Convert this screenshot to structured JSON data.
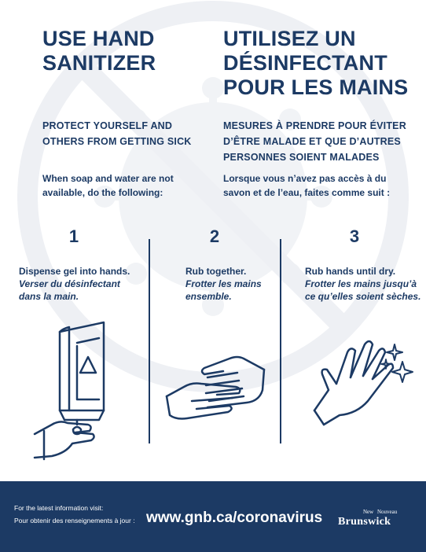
{
  "heading": {
    "en_title_line1": "USE HAND",
    "en_title_line2": "SANITIZER",
    "fr_title_line1": "UTILISEZ UN",
    "fr_title_line2": "DÉSINFECTANT",
    "fr_title_line3": "POUR LES MAINS"
  },
  "subheading": {
    "en_line1": "PROTECT YOURSELF AND",
    "en_line2": "OTHERS FROM GETTING SICK",
    "fr_line1": "MESURES À PRENDRE POUR ÉVITER",
    "fr_line2": "D’ÊTRE MALADE ET QUE D’AUTRES",
    "fr_line3": "PERSONNES SOIENT MALADES"
  },
  "intro": {
    "en_line1": "When soap and water are not",
    "en_line2": "available, do the following:",
    "fr_line1": "Lorsque vous n’avez pas accès à du",
    "fr_line2": "savon et de l’eau, faites comme suit :"
  },
  "steps": [
    {
      "number": "1",
      "en": "Dispense gel into hands.",
      "fr_line1": "Verser du désinfectant",
      "fr_line2": "dans la main.",
      "icon": "sanitizer-dispenser-icon"
    },
    {
      "number": "2",
      "en": "Rub together.",
      "fr_line1": "Frotter les mains",
      "fr_line2": "ensemble.",
      "icon": "rubbing-hands-icon"
    },
    {
      "number": "3",
      "en": "Rub hands until dry.",
      "fr_line1": "Frotter les mains jusqu’à",
      "fr_line2": "ce qu’elles soient sèches.",
      "icon": "dry-hand-sparkle-icon"
    }
  ],
  "footer": {
    "info_en": "For the latest information visit:",
    "info_fr": "Pour obtenir des renseignements à jour :",
    "url": "www.gnb.ca/coronavirus",
    "logo_new": "New",
    "logo_nouveau": "Nouveau",
    "logo_name": "Brunswick"
  },
  "colors": {
    "navy": "#1c3a64",
    "watermark": "#eef0f4",
    "white": "#ffffff"
  }
}
